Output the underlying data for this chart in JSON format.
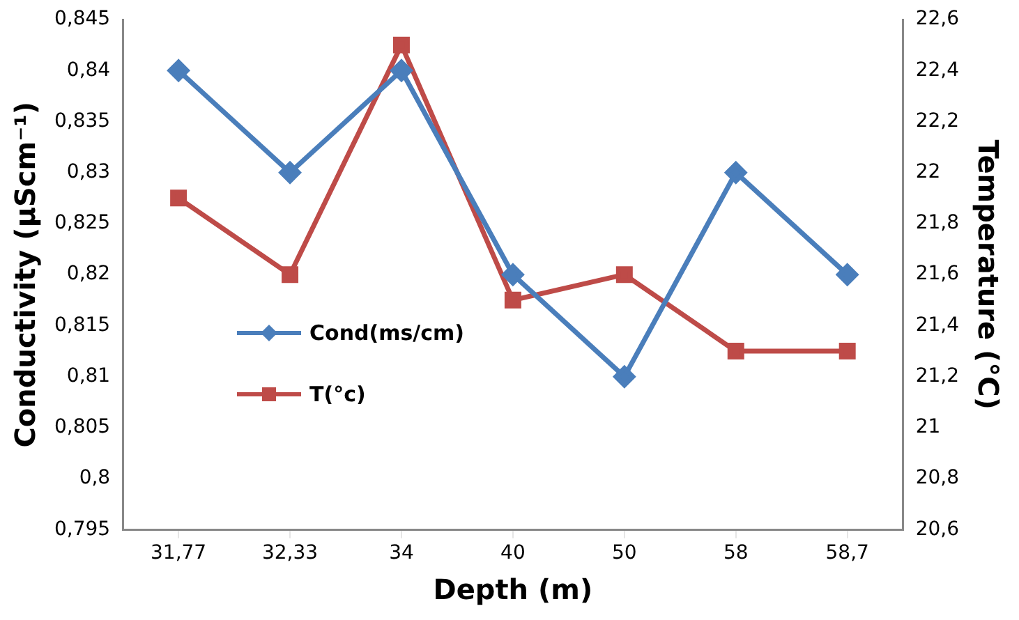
{
  "chart_data": {
    "type": "line",
    "xlabel": "Depth (m)",
    "ylabel": "Conductivity (µScm⁻¹)",
    "y2label": "Temperature (°C)",
    "categories": [
      "31,77",
      "32,33",
      "34",
      "40",
      "50",
      "58",
      "58,7"
    ],
    "series": [
      {
        "name": "Cond(ms/cm)",
        "color": "#4a7ebb",
        "marker": "diamond",
        "values": [
          0.84,
          0.83,
          0.84,
          0.82,
          0.81,
          0.83,
          0.82
        ]
      },
      {
        "name": "T(°c)",
        "color": "#be4b48",
        "marker": "square",
        "axis": "y2",
        "values": [
          21.9,
          21.6,
          22.5,
          21.5,
          21.6,
          21.3,
          21.3
        ]
      }
    ],
    "ylim": [
      0.795,
      0.845
    ],
    "yticks": [
      {
        "value": 0.795,
        "label": "0,795"
      },
      {
        "value": 0.8,
        "label": "0,8"
      },
      {
        "value": 0.805,
        "label": "0,805"
      },
      {
        "value": 0.81,
        "label": "0,81"
      },
      {
        "value": 0.815,
        "label": "0,815"
      },
      {
        "value": 0.82,
        "label": "0,82"
      },
      {
        "value": 0.825,
        "label": "0,825"
      },
      {
        "value": 0.83,
        "label": "0,83"
      },
      {
        "value": 0.835,
        "label": "0,835"
      },
      {
        "value": 0.84,
        "label": "0,84"
      },
      {
        "value": 0.845,
        "label": "0,845"
      }
    ],
    "y2lim": [
      20.6,
      22.6
    ],
    "y2ticks": [
      {
        "value": 20.6,
        "label": "20,6"
      },
      {
        "value": 20.8,
        "label": "20,8"
      },
      21,
      {
        "value": 21.2,
        "label": "21,2"
      },
      {
        "value": 21.4,
        "label": "21,4"
      },
      {
        "value": 21.6,
        "label": "21,6"
      },
      {
        "value": 21.8,
        "label": "21,8"
      },
      22,
      {
        "value": 22.2,
        "label": "22,2"
      },
      {
        "value": 22.4,
        "label": "22,4"
      },
      {
        "value": 22.6,
        "label": "22,6"
      }
    ],
    "grid": false,
    "legend": "left",
    "line_style": "solid"
  }
}
